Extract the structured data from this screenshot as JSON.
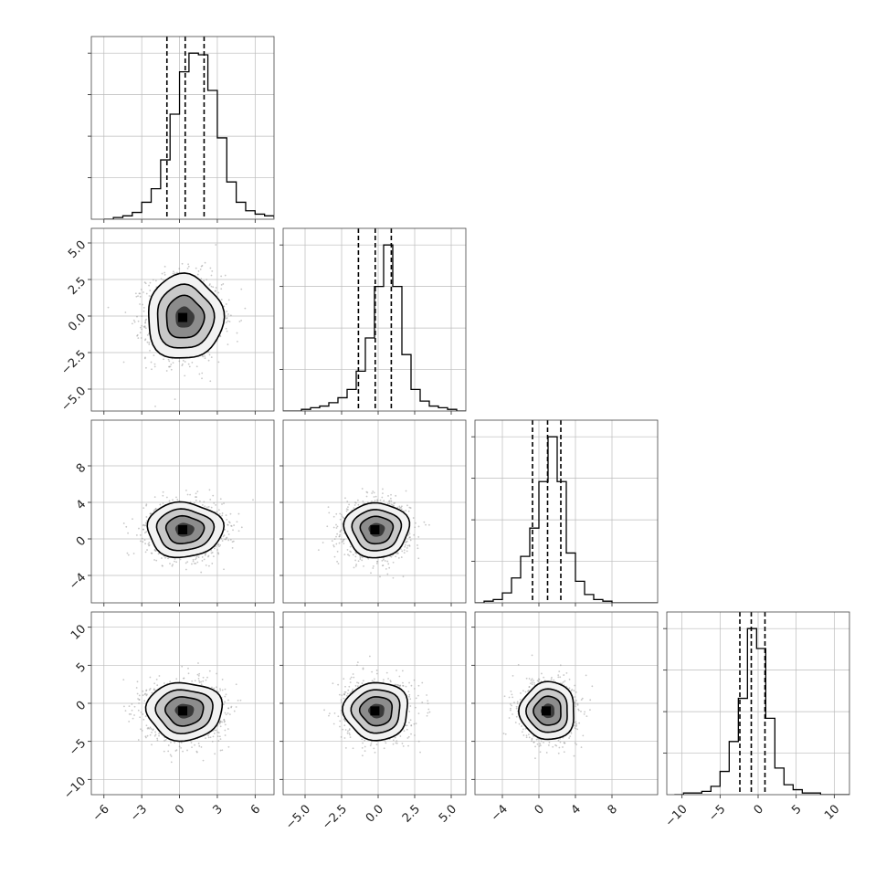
{
  "chart_data": {
    "type": "corner",
    "colors": {
      "line": "#000000",
      "scatter": "#9a9a9a",
      "grid": "#bbbbbb"
    },
    "grid": true,
    "variables": [
      {
        "range": [
          -7,
          7.5
        ],
        "ticks": [
          -6,
          -3,
          0,
          3,
          6
        ],
        "tick_labels": [
          "−6",
          "−3",
          "0",
          "3",
          "6"
        ],
        "quantiles": [
          -1.0,
          0.45,
          1.95
        ],
        "hist": {
          "start": -6.0,
          "step": 0.75,
          "counts": [
            0,
            1,
            2,
            4,
            10,
            18,
            35,
            62,
            87,
            98,
            97,
            76,
            48,
            22,
            10,
            5,
            3,
            2,
            1,
            0
          ]
        }
      },
      {
        "range": [
          -6.5,
          6.0
        ],
        "ticks": [
          -5.0,
          -2.5,
          0.0,
          2.5,
          5.0
        ],
        "tick_labels": [
          "−5.0",
          "−2.5",
          "0.0",
          "2.5",
          "5.0"
        ],
        "quantiles": [
          -1.35,
          -0.2,
          0.9
        ],
        "hist": {
          "start": -6.5,
          "step": 0.625,
          "counts": [
            0,
            0,
            1,
            2,
            3,
            5,
            8,
            13,
            24,
            44,
            75,
            100,
            75,
            34,
            13,
            6,
            3,
            2,
            1,
            0
          ]
        }
      },
      {
        "range": [
          -7,
          13
        ],
        "ticks": [
          -4,
          0,
          4,
          8
        ],
        "tick_labels": [
          "−4",
          "0",
          "4",
          "8"
        ],
        "quantiles": [
          -0.7,
          0.95,
          2.4
        ],
        "hist": {
          "start": -7.0,
          "step": 1.0,
          "counts": [
            0,
            1,
            2,
            6,
            15,
            28,
            45,
            73,
            100,
            73,
            30,
            13,
            5,
            2,
            1,
            0,
            0,
            0,
            0,
            0
          ]
        }
      },
      {
        "range": [
          -12,
          12
        ],
        "ticks": [
          -10,
          -5,
          0,
          5,
          10
        ],
        "tick_labels": [
          "−10",
          "−5",
          "0",
          "5",
          "10"
        ],
        "quantiles": [
          -2.4,
          -0.9,
          0.9
        ],
        "hist": {
          "start": -11.0,
          "step": 1.2,
          "counts": [
            0,
            1,
            1,
            2,
            5,
            14,
            32,
            58,
            100,
            88,
            46,
            16,
            6,
            3,
            1,
            1,
            0,
            0,
            0,
            0
          ]
        }
      }
    ],
    "pairs": [
      {
        "x": 0,
        "y": 1,
        "center": [
          0.4,
          -0.1
        ],
        "sx": 1.5,
        "sy": 1.45,
        "rho": 0.0
      },
      {
        "x": 0,
        "y": 2,
        "center": [
          0.4,
          1.0
        ],
        "sx": 1.5,
        "sy": 1.5,
        "rho": 0.0
      },
      {
        "x": 1,
        "y": 2,
        "center": [
          -0.1,
          1.0
        ],
        "sx": 1.1,
        "sy": 1.5,
        "rho": 0.0
      },
      {
        "x": 0,
        "y": 3,
        "center": [
          0.4,
          -1.0
        ],
        "sx": 1.5,
        "sy": 1.9,
        "rho": 0.0
      },
      {
        "x": 1,
        "y": 3,
        "center": [
          -0.1,
          -1.0
        ],
        "sx": 1.1,
        "sy": 1.9,
        "rho": 0.0
      },
      {
        "x": 2,
        "y": 3,
        "center": [
          1.0,
          -1.0
        ],
        "sx": 1.5,
        "sy": 1.9,
        "rho": 0.0
      }
    ],
    "contour_sigma_levels": [
      0.5,
      1.0,
      1.5,
      2.0
    ]
  }
}
